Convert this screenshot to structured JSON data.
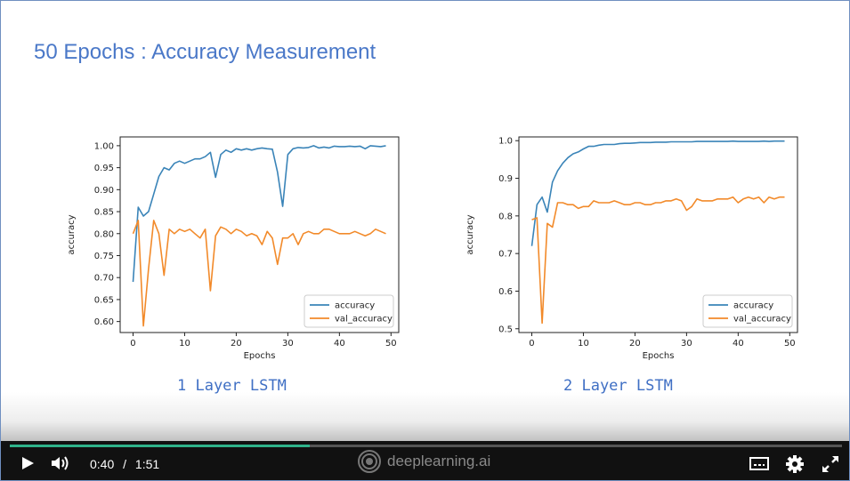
{
  "slide": {
    "title": "50 Epochs : Accuracy Measurement"
  },
  "charts": [
    {
      "caption": "1 Layer LSTM"
    },
    {
      "caption": "2 Layer LSTM"
    }
  ],
  "chart_data": [
    {
      "type": "line",
      "title": "",
      "xlabel": "Epochs",
      "ylabel": "accuracy",
      "xlim": [
        -2.5,
        51.5
      ],
      "ylim": [
        0.575,
        1.02
      ],
      "xticks": [
        0,
        10,
        20,
        30,
        40,
        50
      ],
      "yticks": [
        0.6,
        0.65,
        0.7,
        0.75,
        0.8,
        0.85,
        0.9,
        0.95,
        1.0
      ],
      "ytick_labels": [
        "0.60",
        "0.65",
        "0.70",
        "0.75",
        "0.80",
        "0.85",
        "0.90",
        "0.95",
        "1.00"
      ],
      "legend": "lower-right",
      "grid": false,
      "x": [
        0,
        1,
        2,
        3,
        4,
        5,
        6,
        7,
        8,
        9,
        10,
        11,
        12,
        13,
        14,
        15,
        16,
        17,
        18,
        19,
        20,
        21,
        22,
        23,
        24,
        25,
        26,
        27,
        28,
        29,
        30,
        31,
        32,
        33,
        34,
        35,
        36,
        37,
        38,
        39,
        40,
        41,
        42,
        43,
        44,
        45,
        46,
        47,
        48,
        49
      ],
      "series": [
        {
          "name": "accuracy",
          "color": "#3a84b8",
          "values": [
            0.69,
            0.86,
            0.84,
            0.85,
            0.89,
            0.93,
            0.95,
            0.945,
            0.96,
            0.965,
            0.96,
            0.965,
            0.97,
            0.97,
            0.975,
            0.985,
            0.928,
            0.98,
            0.99,
            0.985,
            0.993,
            0.99,
            0.993,
            0.99,
            0.993,
            0.995,
            0.993,
            0.992,
            0.94,
            0.862,
            0.98,
            0.993,
            0.996,
            0.995,
            0.996,
            1.0,
            0.995,
            0.997,
            0.995,
            0.999,
            0.998,
            0.998,
            0.999,
            0.998,
            0.999,
            0.993,
            1.0,
            0.999,
            0.998,
            1.0
          ]
        },
        {
          "name": "val_accuracy",
          "color": "#f28a2a",
          "values": [
            0.8,
            0.83,
            0.59,
            0.72,
            0.83,
            0.8,
            0.705,
            0.81,
            0.8,
            0.81,
            0.805,
            0.81,
            0.8,
            0.79,
            0.81,
            0.67,
            0.795,
            0.815,
            0.81,
            0.8,
            0.81,
            0.805,
            0.795,
            0.8,
            0.795,
            0.775,
            0.805,
            0.79,
            0.73,
            0.79,
            0.79,
            0.8,
            0.775,
            0.8,
            0.805,
            0.8,
            0.8,
            0.81,
            0.81,
            0.805,
            0.8,
            0.8,
            0.8,
            0.805,
            0.8,
            0.795,
            0.8,
            0.81,
            0.805,
            0.8
          ]
        }
      ]
    },
    {
      "type": "line",
      "title": "",
      "xlabel": "Epochs",
      "ylabel": "accuracy",
      "xlim": [
        -2.5,
        51.5
      ],
      "ylim": [
        0.49,
        1.01
      ],
      "xticks": [
        0,
        10,
        20,
        30,
        40,
        50
      ],
      "yticks": [
        0.5,
        0.6,
        0.7,
        0.8,
        0.9,
        1.0
      ],
      "ytick_labels": [
        "0.5",
        "0.6",
        "0.7",
        "0.8",
        "0.9",
        "1.0"
      ],
      "legend": "lower-right",
      "grid": false,
      "x": [
        0,
        1,
        2,
        3,
        4,
        5,
        6,
        7,
        8,
        9,
        10,
        11,
        12,
        13,
        14,
        15,
        16,
        17,
        18,
        19,
        20,
        21,
        22,
        23,
        24,
        25,
        26,
        27,
        28,
        29,
        30,
        31,
        32,
        33,
        34,
        35,
        36,
        37,
        38,
        39,
        40,
        41,
        42,
        43,
        44,
        45,
        46,
        47,
        48,
        49
      ],
      "series": [
        {
          "name": "accuracy",
          "color": "#3a84b8",
          "values": [
            0.72,
            0.83,
            0.85,
            0.81,
            0.89,
            0.92,
            0.94,
            0.955,
            0.965,
            0.97,
            0.978,
            0.985,
            0.985,
            0.988,
            0.99,
            0.99,
            0.99,
            0.992,
            0.993,
            0.993,
            0.994,
            0.995,
            0.995,
            0.995,
            0.996,
            0.996,
            0.996,
            0.997,
            0.997,
            0.997,
            0.997,
            0.997,
            0.998,
            0.998,
            0.998,
            0.998,
            0.998,
            0.998,
            0.998,
            0.999,
            0.998,
            0.998,
            0.998,
            0.998,
            0.998,
            0.999,
            0.998,
            0.999,
            0.999,
            0.999
          ]
        },
        {
          "name": "val_accuracy",
          "color": "#f28a2a",
          "values": [
            0.79,
            0.795,
            0.515,
            0.78,
            0.77,
            0.835,
            0.835,
            0.83,
            0.83,
            0.82,
            0.825,
            0.825,
            0.84,
            0.835,
            0.835,
            0.835,
            0.84,
            0.835,
            0.83,
            0.83,
            0.835,
            0.835,
            0.83,
            0.83,
            0.835,
            0.835,
            0.84,
            0.84,
            0.845,
            0.84,
            0.815,
            0.825,
            0.845,
            0.84,
            0.84,
            0.84,
            0.845,
            0.845,
            0.845,
            0.85,
            0.835,
            0.845,
            0.85,
            0.845,
            0.85,
            0.835,
            0.85,
            0.845,
            0.85,
            0.85
          ]
        }
      ]
    }
  ],
  "player": {
    "current_time": "0:40",
    "separator": "/",
    "duration": "1:51",
    "progress": 0.36,
    "brand": "deeplearning.ai",
    "accent_color": "#2fb38a",
    "icons": {
      "play": "play-icon",
      "volume": "volume-icon",
      "logo": "deeplearning-logo-icon",
      "captions": "captions-icon",
      "settings": "gear-icon",
      "fullscreen": "fullscreen-icon"
    }
  }
}
